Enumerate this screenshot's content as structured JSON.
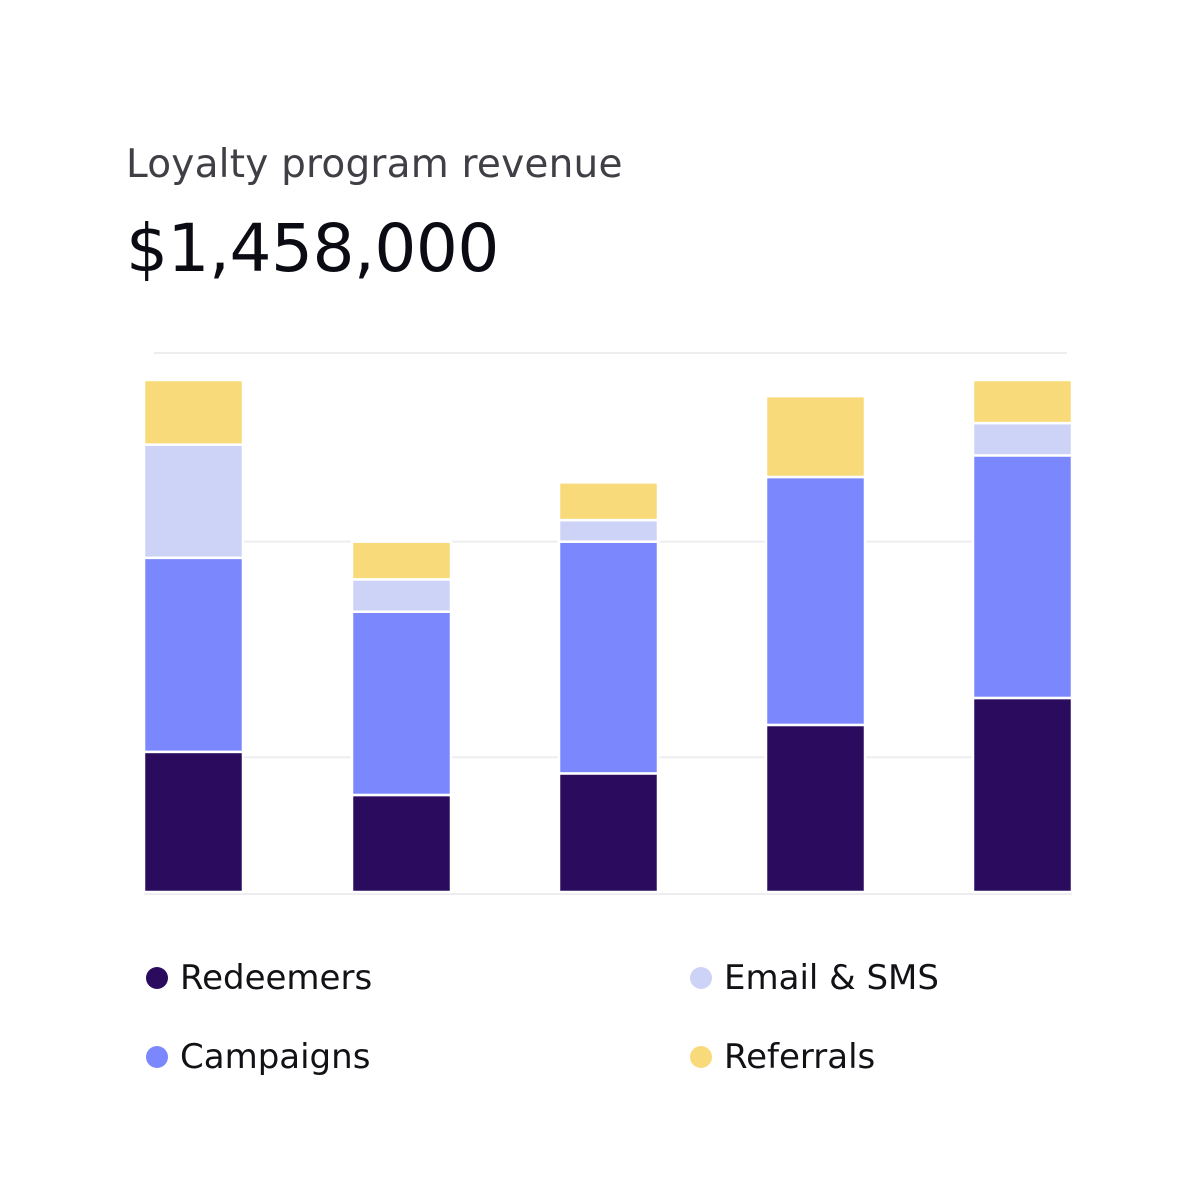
{
  "header": {
    "title": "Loyalty program revenue",
    "total": "$1,458,000"
  },
  "legend": [
    {
      "label": "Redeemers",
      "color": "#2a0b5e"
    },
    {
      "label": "Email & SMS",
      "color": "#cdd3f6"
    },
    {
      "label": "Campaigns",
      "color": "#7b88fd"
    },
    {
      "label": "Referrals",
      "color": "#f9da7a"
    }
  ],
  "chart_data": {
    "type": "bar",
    "stacked": true,
    "title": "Loyalty program revenue",
    "categories": [
      "",
      "",
      "",
      "",
      ""
    ],
    "ylim": [
      0,
      100
    ],
    "grid": true,
    "legend_position": "bottom",
    "series": [
      {
        "name": "Redeemers",
        "color": "#2a0b5e",
        "values": [
          26,
          18,
          22,
          31,
          36
        ]
      },
      {
        "name": "Campaigns",
        "color": "#7b88fd",
        "values": [
          36,
          34,
          43,
          46,
          45
        ]
      },
      {
        "name": "Email & SMS",
        "color": "#cdd3f6",
        "values": [
          21,
          6,
          4,
          0,
          6
        ]
      },
      {
        "name": "Referrals",
        "color": "#f9da7a",
        "values": [
          12,
          7,
          7,
          15,
          8
        ]
      }
    ]
  }
}
